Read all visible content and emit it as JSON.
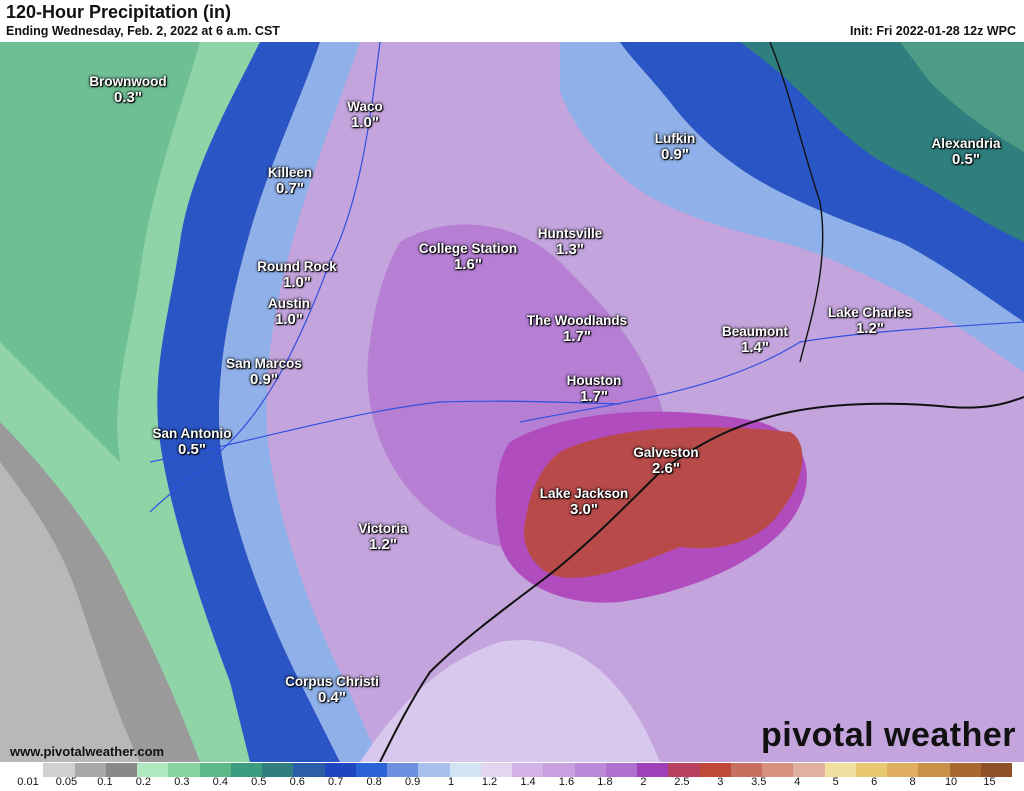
{
  "header": {
    "title": "120-Hour Precipitation (in)",
    "subtitle": "Ending Wednesday, Feb. 2, 2022 at 6 a.m. CST",
    "init": "Init: Fri 2022-01-28 12z WPC"
  },
  "cities": [
    {
      "name": "Brownwood",
      "value": "0.3\""
    },
    {
      "name": "Waco",
      "value": "1.0\""
    },
    {
      "name": "Killeen",
      "value": "0.7\""
    },
    {
      "name": "Lufkin",
      "value": "0.9\""
    },
    {
      "name": "Alexandria",
      "value": "0.5\""
    },
    {
      "name": "Huntsville",
      "value": "1.3\""
    },
    {
      "name": "College Station",
      "value": "1.6\""
    },
    {
      "name": "Round Rock",
      "value": "1.0\""
    },
    {
      "name": "Austin",
      "value": "1.0\""
    },
    {
      "name": "The Woodlands",
      "value": "1.7\""
    },
    {
      "name": "Lake Charles",
      "value": "1.2\""
    },
    {
      "name": "Beaumont",
      "value": "1.4\""
    },
    {
      "name": "San Marcos",
      "value": "0.9\""
    },
    {
      "name": "Houston",
      "value": "1.7\""
    },
    {
      "name": "San Antonio",
      "value": "0.5\""
    },
    {
      "name": "Galveston",
      "value": "2.6\""
    },
    {
      "name": "Lake Jackson",
      "value": "3.0\""
    },
    {
      "name": "Victoria",
      "value": "1.2\""
    },
    {
      "name": "Corpus Christi",
      "value": "0.4\""
    }
  ],
  "footer": {
    "website": "www.pivotalweather.com",
    "logo": "pivotal weather"
  },
  "legend": {
    "ticks": [
      "0.01",
      "0.05",
      "0.1",
      "0.2",
      "0.3",
      "0.4",
      "0.5",
      "0.6",
      "0.7",
      "0.8",
      "0.9",
      "1",
      "1.2",
      "1.4",
      "1.6",
      "1.8",
      "2",
      "2.5",
      "3",
      "3.5",
      "4",
      "5",
      "6",
      "8",
      "10",
      "15"
    ],
    "colors": [
      "#ffffff",
      "#d0d0d0",
      "#a8a8a8",
      "#888888",
      "#b0e8c0",
      "#88d4a0",
      "#5cb888",
      "#3c9c80",
      "#307f80",
      "#2a5fa8",
      "#2045c0",
      "#2a62d8",
      "#6e90e0",
      "#a8c0ec",
      "#d0e4f4",
      "#e4d4f0",
      "#d4b4e8",
      "#c8a0e0",
      "#bc8ad8",
      "#b070d0",
      "#a040b8",
      "#b84060",
      "#c04838",
      "#c87060",
      "#d89080",
      "#e0b0a0",
      "#f0e0a0",
      "#e8c870",
      "#e0b060",
      "#c89048",
      "#a86830",
      "#905028"
    ]
  }
}
